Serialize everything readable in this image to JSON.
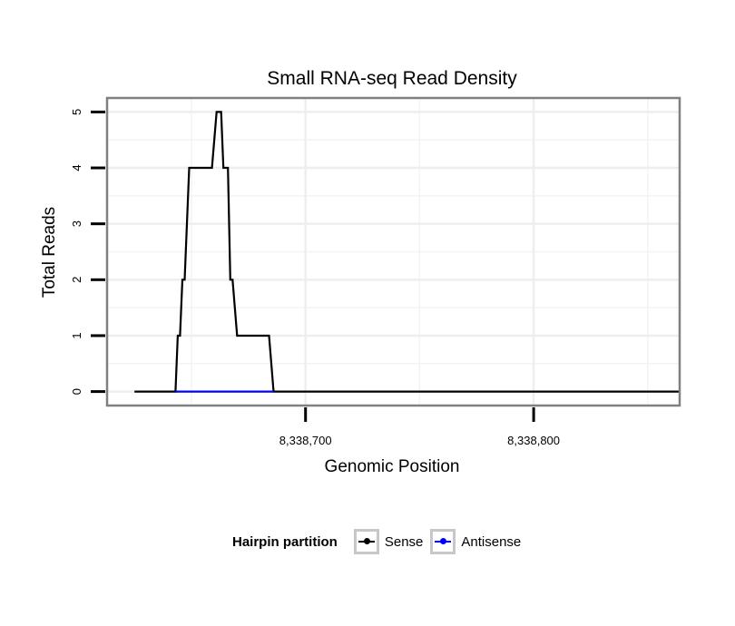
{
  "chart_data": {
    "type": "line",
    "title": "Small RNA-seq Read Density",
    "xlabel": "Genomic Position",
    "ylabel": "Total Reads",
    "xlim": [
      8338613,
      8338864
    ],
    "ylim": [
      -0.25,
      5.25
    ],
    "x_ticks": [
      {
        "value": 8338700,
        "label": "8,338,700"
      },
      {
        "value": 8338800,
        "label": "8,338,800"
      }
    ],
    "y_ticks": [
      {
        "value": 0,
        "label": "0"
      },
      {
        "value": 1,
        "label": "1"
      },
      {
        "value": 2,
        "label": "2"
      },
      {
        "value": 3,
        "label": "3"
      },
      {
        "value": 4,
        "label": "4"
      },
      {
        "value": 5,
        "label": "5"
      }
    ],
    "x_minor_grid": [
      8338650,
      8338750,
      8338850
    ],
    "grid": true,
    "legend": {
      "title": "Hairpin partition",
      "position": "bottom",
      "entries": [
        {
          "name": "Sense",
          "color": "#000000"
        },
        {
          "name": "Antisense",
          "color": "#0000ff"
        }
      ]
    },
    "series": [
      {
        "name": "Sense",
        "color": "#000000",
        "x": [
          8338625,
          8338643,
          8338644,
          8338645,
          8338646,
          8338647,
          8338649,
          8338659,
          8338661,
          8338663,
          8338664,
          8338666,
          8338667,
          8338668,
          8338670,
          8338671,
          8338673,
          8338684,
          8338686,
          8338699,
          8338864
        ],
        "y": [
          0,
          0,
          1,
          1,
          2,
          2,
          4,
          4,
          5,
          5,
          4,
          4,
          2,
          2,
          1,
          1,
          1,
          1,
          0,
          0,
          0
        ]
      },
      {
        "name": "Antisense",
        "color": "#0000ff",
        "x": [
          8338643,
          8338686
        ],
        "y": [
          0,
          0
        ]
      }
    ]
  }
}
